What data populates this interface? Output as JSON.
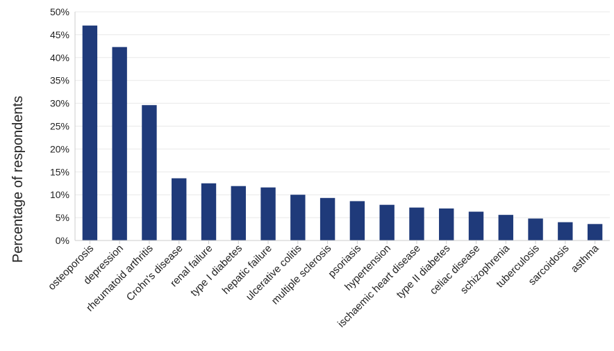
{
  "chart_data": {
    "type": "bar",
    "title": "",
    "xlabel": "",
    "ylabel": "Percentage of respondents",
    "ylim": [
      0,
      50
    ],
    "y_tick_step": 5,
    "y_tick_suffix": "%",
    "grid": true,
    "bar_color": "#1f3a7a",
    "grid_color": "#e8e8e8",
    "axis_color": "#cccccc",
    "categories": [
      "osteoporosis",
      "depression",
      "rheumatoid arthritis",
      "Crohn's disease",
      "renal failure",
      "type I diabetes",
      "hepatic failure",
      "ulcerative colitis",
      "multiple sclerosis",
      "psoriasis",
      "hypertension",
      "ischaemic heart disease",
      "type II diabetes",
      "celiac disease",
      "schizophrenia",
      "tuberculosis",
      "sarcoidosis",
      "asthma"
    ],
    "values": [
      47.0,
      42.3,
      29.6,
      13.6,
      12.5,
      11.9,
      11.6,
      10.0,
      9.3,
      8.6,
      7.8,
      7.2,
      7.0,
      6.3,
      5.6,
      4.8,
      4.0,
      3.6
    ]
  }
}
